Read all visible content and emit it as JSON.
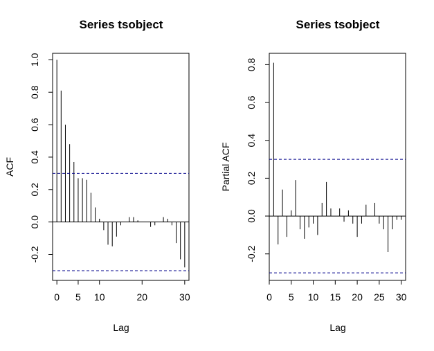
{
  "chart_data": [
    {
      "type": "bar",
      "title": "Series  tsobject",
      "xlabel": "Lag",
      "ylabel": "ACF",
      "x_ticks": [
        0,
        5,
        10,
        20,
        30
      ],
      "y_ticks": [
        -0.2,
        0.0,
        0.2,
        0.4,
        0.6,
        0.8,
        1.0
      ],
      "y_tick_labels": [
        "-0.2",
        "0.0",
        "0.2",
        "0.4",
        "0.6",
        "0.8",
        "1.0"
      ],
      "xlim": [
        -1,
        31
      ],
      "ylim": [
        -0.36,
        1.04
      ],
      "confidence_bound": 0.3,
      "lags": [
        0,
        1,
        2,
        3,
        4,
        5,
        6,
        7,
        8,
        9,
        10,
        11,
        12,
        13,
        14,
        15,
        16,
        17,
        18,
        19,
        20,
        21,
        22,
        23,
        24,
        25,
        26,
        27,
        28,
        29,
        30
      ],
      "values": [
        1.0,
        0.81,
        0.6,
        0.48,
        0.37,
        0.27,
        0.27,
        0.26,
        0.18,
        0.09,
        0.02,
        -0.05,
        -0.14,
        -0.15,
        -0.09,
        -0.02,
        0.0,
        0.03,
        0.03,
        0.01,
        0.0,
        0.0,
        -0.03,
        -0.02,
        0.0,
        0.03,
        0.02,
        -0.02,
        -0.13,
        -0.23,
        -0.28
      ],
      "color": "#000000",
      "bound_color": "#00008b"
    },
    {
      "type": "bar",
      "title": "Series  tsobject",
      "xlabel": "Lag",
      "ylabel": "Partial ACF",
      "x_ticks": [
        0,
        5,
        10,
        15,
        20,
        25,
        30
      ],
      "y_ticks": [
        -0.2,
        0.0,
        0.2,
        0.4,
        0.6,
        0.8
      ],
      "y_tick_labels": [
        "-0.2",
        "0.0",
        "0.2",
        "0.4",
        "0.6",
        "0.8"
      ],
      "xlim": [
        0,
        31
      ],
      "ylim": [
        -0.34,
        0.86
      ],
      "confidence_bound": 0.3,
      "lags": [
        1,
        2,
        3,
        4,
        5,
        6,
        7,
        8,
        9,
        10,
        11,
        12,
        13,
        14,
        15,
        16,
        17,
        18,
        19,
        20,
        21,
        22,
        23,
        24,
        25,
        26,
        27,
        28,
        29,
        30
      ],
      "values": [
        0.81,
        -0.15,
        0.14,
        -0.11,
        0.03,
        0.19,
        -0.07,
        -0.12,
        -0.06,
        -0.04,
        -0.1,
        0.07,
        0.18,
        0.04,
        0.0,
        0.04,
        -0.03,
        0.03,
        -0.04,
        -0.11,
        -0.04,
        0.06,
        0.0,
        0.07,
        -0.04,
        -0.07,
        -0.19,
        -0.07,
        -0.02,
        -0.02
      ],
      "color": "#000000",
      "bound_color": "#00008b"
    }
  ]
}
